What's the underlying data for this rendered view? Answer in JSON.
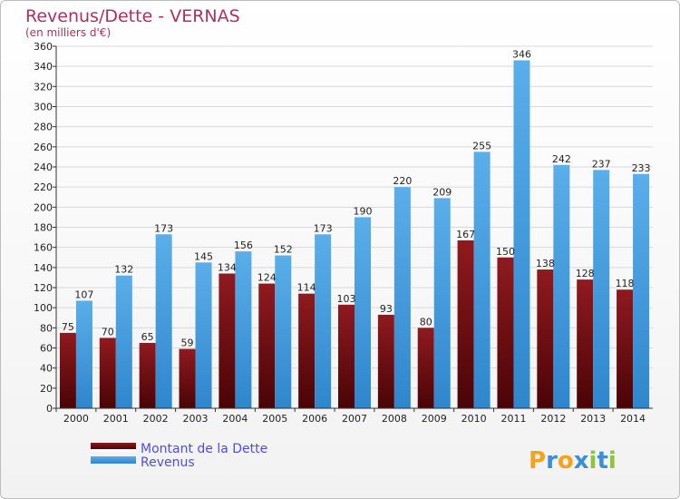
{
  "chart_data": {
    "type": "bar",
    "title": "Revenus/Dette - VERNAS",
    "subtitle": "(en milliers d'€)",
    "categories": [
      "2000",
      "2001",
      "2002",
      "2003",
      "2004",
      "2005",
      "2006",
      "2007",
      "2008",
      "2009",
      "2010",
      "2011",
      "2012",
      "2013",
      "2014"
    ],
    "series": [
      {
        "name": "Montant de la Dette",
        "color": "#7a0e12",
        "values": [
          75,
          70,
          65,
          59,
          134,
          124,
          114,
          103,
          93,
          80,
          167,
          150,
          138,
          128,
          118
        ]
      },
      {
        "name": "Revenus",
        "color": "#3d9ee3",
        "values": [
          107,
          132,
          173,
          145,
          156,
          152,
          173,
          190,
          220,
          209,
          255,
          346,
          242,
          237,
          233
        ]
      }
    ],
    "ylim": [
      0,
      360
    ],
    "yticks": [
      0,
      20,
      40,
      60,
      80,
      100,
      120,
      140,
      160,
      180,
      200,
      220,
      240,
      260,
      280,
      300,
      320,
      340,
      360
    ],
    "grid": true,
    "legend_position": "bottom-left"
  },
  "logo": {
    "letters": [
      "P",
      "r",
      "o",
      "x",
      "i",
      "t",
      "i"
    ],
    "colors": [
      "#f7a21b",
      "#3a8fd8",
      "#f7a21b",
      "#3a8fd8",
      "#8fc43a",
      "#3a8fd8",
      "#8fc43a"
    ]
  }
}
